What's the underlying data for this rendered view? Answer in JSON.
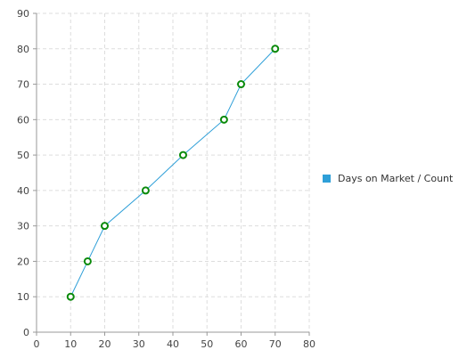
{
  "chart_data": {
    "type": "line",
    "x": [
      10,
      15,
      20,
      32,
      43,
      55,
      60,
      70
    ],
    "series": [
      {
        "name": "Days on Market / Count",
        "values": [
          10,
          20,
          30,
          40,
          50,
          60,
          70,
          80
        ]
      }
    ],
    "title": "",
    "xlabel": "",
    "ylabel": "",
    "xlim": [
      0,
      80
    ],
    "ylim": [
      0,
      90
    ],
    "x_ticks": [
      "0",
      "10",
      "20",
      "30",
      "40",
      "50",
      "60",
      "70",
      "80"
    ],
    "y_ticks": [
      "0",
      "10",
      "20",
      "30",
      "40",
      "50",
      "60",
      "70",
      "80",
      "90"
    ],
    "grid": true,
    "grid_style": "dashed",
    "legend_position": "right",
    "colors": {
      "line": "#2e9fd8",
      "marker_stroke": "#0a8a0a",
      "marker_fill": "#ffffff",
      "legend_swatch": "#2e9fd8",
      "grid": "#dddddd",
      "axis": "#999999"
    }
  }
}
